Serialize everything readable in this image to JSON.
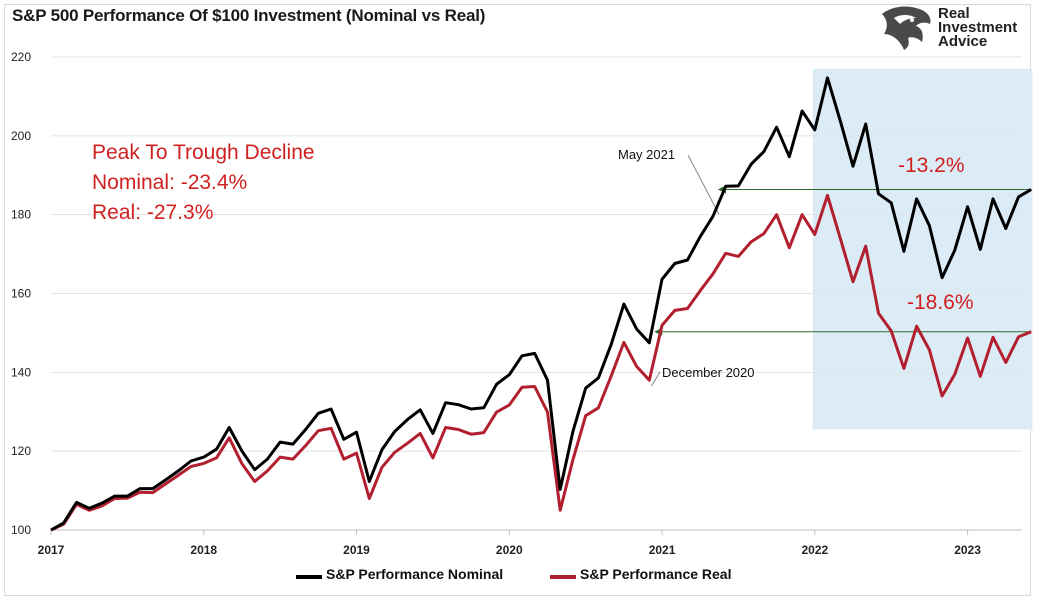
{
  "title": "S&P 500 Performance Of $100 Investment (Nominal vs Real)",
  "logo": {
    "line1": "Real",
    "line2": "Investment",
    "line3": "Advice",
    "icon": "eagle-head-icon"
  },
  "annotation": {
    "line1": "Peak To Trough Decline",
    "line2": "Nominal:  -23.4%",
    "line3": "Real:  -27.3%"
  },
  "callouts": {
    "nominal_pct": "-13.2%",
    "real_pct": "-18.6%",
    "may": "May 2021",
    "dec": "December 2020"
  },
  "colors": {
    "nominal": "#000000",
    "real": "#b22030",
    "shade": "#dcecf7",
    "arrow": "#2e6b2e",
    "annotation_text": "#d02020"
  },
  "chart_data": {
    "type": "line",
    "title": "S&P 500 Performance Of $100 Investment (Nominal vs Real)",
    "xlabel": "",
    "ylabel": "",
    "ylim": [
      100,
      220
    ],
    "yticks": [
      100,
      120,
      140,
      160,
      180,
      200,
      220
    ],
    "xticks": [
      "2017",
      "2018",
      "2019",
      "2020",
      "2021",
      "2022",
      "2023"
    ],
    "x_start": "2017-01",
    "frequency": "monthly",
    "grid": true,
    "legend_position": "bottom",
    "shaded_region": {
      "x_from": "2022-01",
      "x_to": "2023-05",
      "y_from": 125.5,
      "y_to": 217
    },
    "series": [
      {
        "name": "S&P Performance Nominal",
        "values": [
          100,
          101.8,
          107,
          105.5,
          106.8,
          108.6,
          108.6,
          110.5,
          110.5,
          112.7,
          115,
          117.5,
          118.5,
          120.5,
          126,
          120,
          115.3,
          118,
          122.3,
          121.8,
          125.5,
          129.6,
          130.7,
          123,
          124.8,
          112.3,
          120.4,
          125,
          128,
          130.5,
          124.5,
          132.3,
          131.8,
          130.7,
          131,
          137,
          139.4,
          144.2,
          144.8,
          138,
          110.3,
          125,
          136,
          138.6,
          147,
          157.3,
          151,
          147.5,
          163.6,
          167.6,
          168.5,
          174.4,
          179.6,
          187.2,
          187.3,
          192.8,
          196,
          202.2,
          194.7,
          206.3,
          201.5,
          214.7,
          203.8,
          192.3,
          203,
          185.3,
          183,
          170.7,
          184,
          177.2,
          164,
          171,
          182,
          171.2,
          184,
          176.5,
          184.5,
          186.4
        ]
      },
      {
        "name": "S&P Performance Real",
        "values": [
          100,
          101.5,
          106.5,
          105,
          106.1,
          108,
          108.1,
          109.6,
          109.5,
          111.7,
          113.9,
          116.1,
          116.9,
          118.3,
          123.4,
          116.8,
          112.3,
          115,
          118.5,
          118,
          121.4,
          125.2,
          125.8,
          118,
          119.5,
          108,
          115.9,
          119.7,
          122,
          124.5,
          118.3,
          126,
          125.5,
          124.3,
          124.7,
          129.9,
          131.7,
          136.2,
          136.4,
          129.9,
          105,
          117.8,
          129,
          131,
          139,
          147.6,
          141.5,
          138,
          151.9,
          155.7,
          156.2,
          160.7,
          165,
          170.2,
          169.4,
          173.1,
          175.2,
          180,
          171.6,
          180,
          175,
          184.9,
          174,
          163,
          172,
          155,
          150.5,
          141,
          151.7,
          145.7,
          134,
          139.5,
          148.7,
          139,
          148.9,
          142.5,
          149,
          150.3
        ]
      }
    ]
  },
  "legend": {
    "nominal_label": "S&P Performance Nominal",
    "real_label": "S&P Performance Real"
  }
}
